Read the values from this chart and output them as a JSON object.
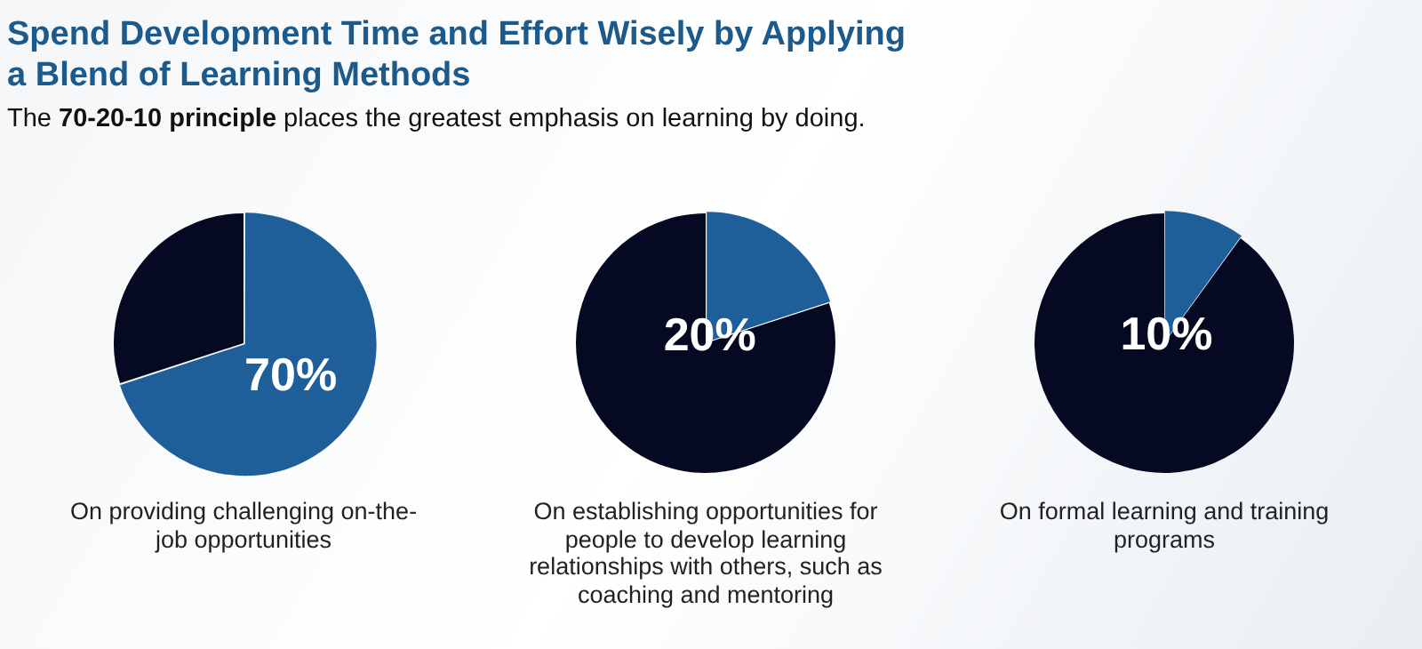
{
  "chart_data": [
    {
      "type": "other",
      "title": "Spend Development Time and Effort Wisely by Applying a Blend of Learning Methods",
      "subtitle": "The **70-20-10 principle** places the greatest emphasis on learning by doing."
    },
    {
      "type": "pie",
      "categories": [
        null,
        null
      ],
      "values": [
        70,
        30
      ],
      "colors": [
        "#1f5f99",
        "#050a22"
      ],
      "value_labels": [
        "70%",
        null
      ],
      "annotations": [
        "On providing challenging on-the-job opportunities"
      ]
    },
    {
      "type": "pie",
      "categories": [
        null,
        null
      ],
      "values": [
        20,
        80
      ],
      "colors": [
        "#1f5f99",
        "#050a22"
      ],
      "value_labels": [
        "20%",
        null
      ],
      "annotations": [
        "On establishing opportunities for people to develop learning relationships with others, such as coaching and mentoring"
      ]
    },
    {
      "type": "pie",
      "categories": [
        null,
        null
      ],
      "values": [
        10,
        90
      ],
      "colors": [
        "#1f5f99",
        "#050a22"
      ],
      "value_labels": [
        "10%",
        null
      ],
      "annotations": [
        "On formal learning and training programs"
      ]
    }
  ]
}
